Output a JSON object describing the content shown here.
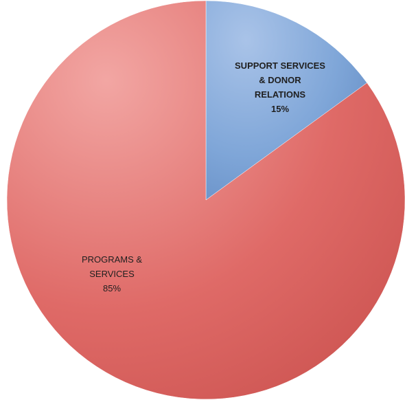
{
  "chart_data": {
    "type": "pie",
    "title": "",
    "legend": "none",
    "slices": [
      {
        "label_lines": [
          "SUPPORT SERVICES",
          "& DONOR",
          "RELATIONS"
        ],
        "label": "SUPPORT SERVICES & DONOR RELATIONS",
        "value": 15,
        "value_label": "15%",
        "color": "#7fa6d8",
        "highlight_color": "#a9c3e8",
        "shadow_color": "#5f88c0",
        "label_bold": true
      },
      {
        "label_lines": [
          "PROGRAMS &",
          "SERVICES"
        ],
        "label": "PROGRAMS & SERVICES",
        "value": 85,
        "value_label": "85%",
        "color": "#df6a67",
        "highlight_color": "#f2a6a3",
        "shadow_color": "#c9504d",
        "label_bold": false
      }
    ],
    "start_angle_deg": 0,
    "direction": "clockwise"
  }
}
